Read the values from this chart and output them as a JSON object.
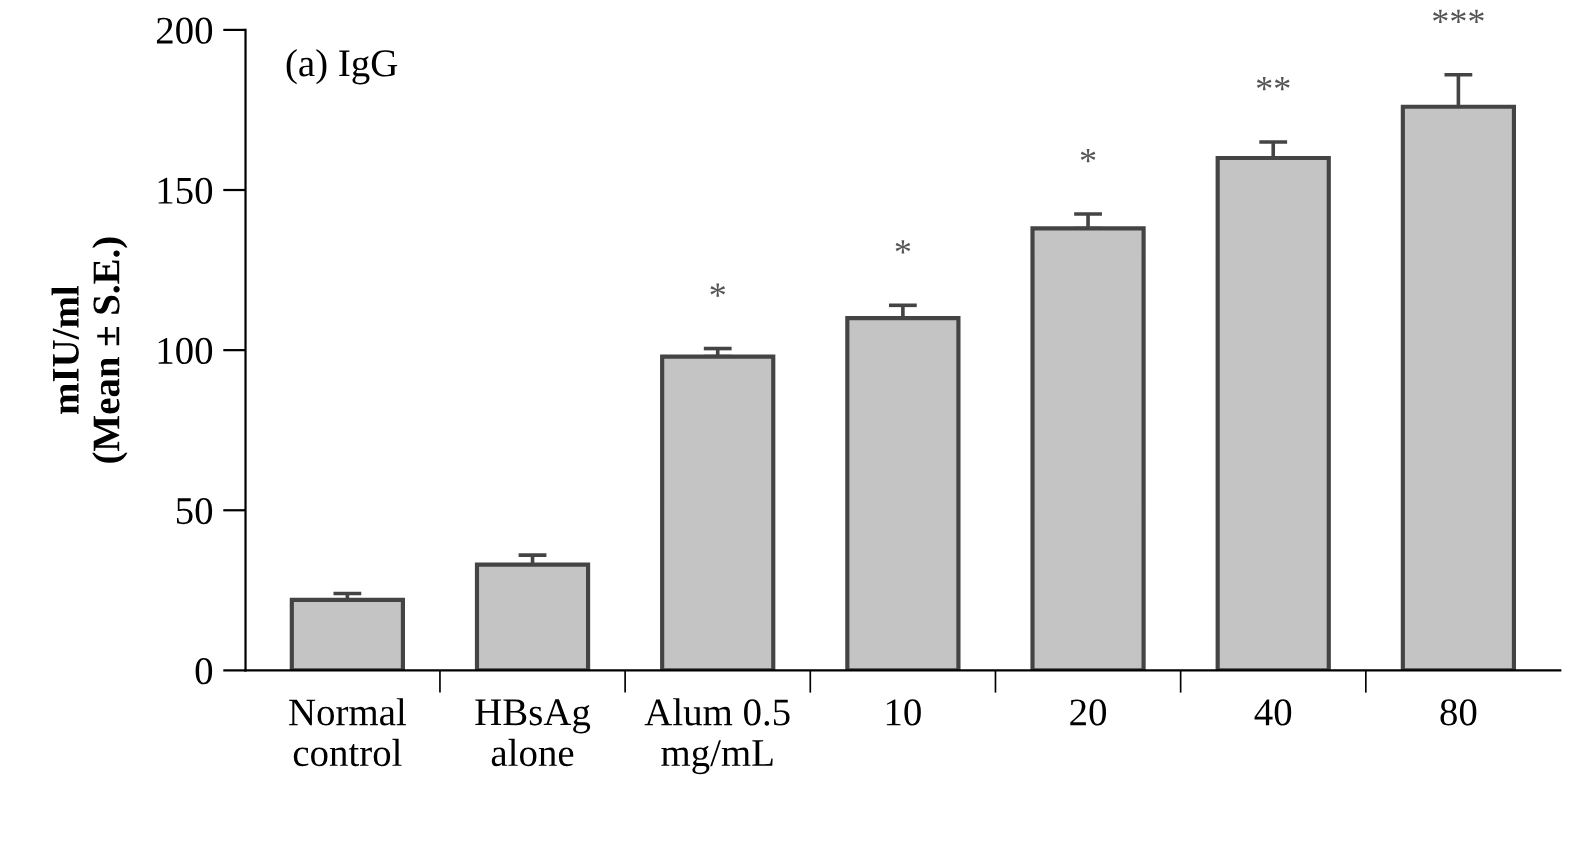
{
  "chart_data": {
    "type": "bar",
    "title": "(a) IgG",
    "ylabel": "mIU/ml\n(Mean ± S.E.)",
    "categories": [
      "Normal\ncontrol",
      "HBsAg\nalone",
      "Alum 0.5\nmg/mL",
      "10",
      "20",
      "40",
      "80"
    ],
    "values": [
      22,
      33,
      98,
      110,
      138,
      160,
      176
    ],
    "errors": [
      [
        22,
        24
      ],
      [
        33,
        36
      ],
      [
        98,
        100.5
      ],
      [
        110,
        114
      ],
      [
        138,
        142.5
      ],
      [
        160,
        165
      ],
      [
        176,
        186
      ]
    ],
    "color": "#c4c4c4",
    "ylim": [
      0,
      200
    ],
    "yticks": [
      0,
      50,
      100,
      150,
      200
    ],
    "grid": false,
    "value_labels": [
      null,
      null,
      "*",
      "*",
      "*",
      "**",
      "***"
    ]
  }
}
